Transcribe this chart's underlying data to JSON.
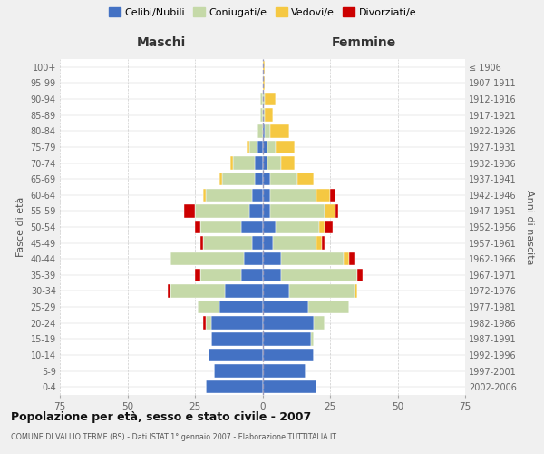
{
  "age_groups": [
    "0-4",
    "5-9",
    "10-14",
    "15-19",
    "20-24",
    "25-29",
    "30-34",
    "35-39",
    "40-44",
    "45-49",
    "50-54",
    "55-59",
    "60-64",
    "65-69",
    "70-74",
    "75-79",
    "80-84",
    "85-89",
    "90-94",
    "95-99",
    "100+"
  ],
  "birth_years": [
    "2002-2006",
    "1997-2001",
    "1992-1996",
    "1987-1991",
    "1982-1986",
    "1977-1981",
    "1972-1976",
    "1967-1971",
    "1962-1966",
    "1957-1961",
    "1952-1956",
    "1947-1951",
    "1942-1946",
    "1937-1941",
    "1932-1936",
    "1927-1931",
    "1922-1926",
    "1917-1921",
    "1912-1916",
    "1907-1911",
    "≤ 1906"
  ],
  "males": {
    "celibe": [
      21,
      18,
      20,
      19,
      19,
      16,
      14,
      8,
      7,
      4,
      8,
      5,
      4,
      3,
      3,
      2,
      0,
      0,
      0,
      0,
      0
    ],
    "coniugato": [
      0,
      0,
      0,
      0,
      2,
      8,
      20,
      15,
      27,
      18,
      15,
      20,
      17,
      12,
      8,
      3,
      2,
      1,
      1,
      0,
      0
    ],
    "vedovo": [
      0,
      0,
      0,
      0,
      0,
      0,
      0,
      0,
      0,
      0,
      0,
      0,
      1,
      1,
      1,
      1,
      0,
      0,
      0,
      0,
      0
    ],
    "divorziato": [
      0,
      0,
      0,
      0,
      1,
      0,
      1,
      2,
      0,
      1,
      2,
      4,
      0,
      0,
      0,
      0,
      0,
      0,
      0,
      0,
      0
    ]
  },
  "females": {
    "nubile": [
      20,
      16,
      19,
      18,
      19,
      17,
      10,
      7,
      7,
      4,
      5,
      3,
      3,
      3,
      2,
      2,
      1,
      0,
      0,
      0,
      0
    ],
    "coniugata": [
      0,
      0,
      0,
      1,
      4,
      15,
      24,
      28,
      23,
      16,
      16,
      20,
      17,
      10,
      5,
      3,
      2,
      1,
      1,
      0,
      0
    ],
    "vedova": [
      0,
      0,
      0,
      0,
      0,
      0,
      1,
      0,
      2,
      2,
      2,
      4,
      5,
      6,
      5,
      7,
      7,
      3,
      4,
      1,
      1
    ],
    "divorziata": [
      0,
      0,
      0,
      0,
      0,
      0,
      0,
      2,
      2,
      1,
      3,
      1,
      2,
      0,
      0,
      0,
      0,
      0,
      0,
      0,
      0
    ]
  },
  "colors": {
    "celibe": "#4472c4",
    "coniugato": "#c5d9a8",
    "vedovo": "#f5c842",
    "divorziato": "#cc0000"
  },
  "title": "Popolazione per età, sesso e stato civile - 2007",
  "subtitle": "COMUNE DI VALLIO TERME (BS) - Dati ISTAT 1° gennaio 2007 - Elaborazione TUTTITALIA.IT",
  "xlabel_left": "Maschi",
  "xlabel_right": "Femmine",
  "ylabel_left": "Fasce di età",
  "ylabel_right": "Anni di nascita",
  "xlim": 75,
  "xticks": [
    -75,
    -50,
    -25,
    0,
    25,
    50,
    75
  ],
  "legend_labels": [
    "Celibi/Nubili",
    "Coniugati/e",
    "Vedovi/e",
    "Divorziati/e"
  ],
  "bg_color": "#f0f0f0",
  "plot_bg": "#ffffff",
  "grid_color": "#cccccc"
}
